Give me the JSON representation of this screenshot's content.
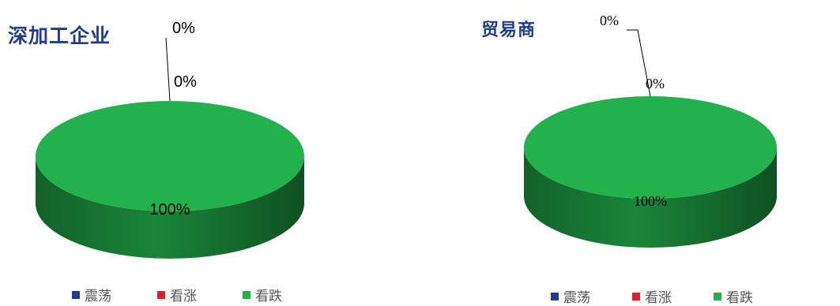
{
  "chart_data": [
    {
      "type": "pie",
      "title": "深加工企业",
      "categories": [
        "震荡",
        "看涨",
        "看跌"
      ],
      "values": [
        0,
        0,
        100
      ],
      "data_labels": [
        "0%",
        "0%",
        "100%"
      ],
      "colors": [
        "#1f3d8c",
        "#e0202a",
        "#22b14c"
      ],
      "legend": "bottom",
      "style": "3d"
    },
    {
      "type": "pie",
      "title": "贸易商",
      "categories": [
        "震荡",
        "看涨",
        "看跌"
      ],
      "values": [
        0,
        0,
        100
      ],
      "data_labels": [
        "0%",
        "0%",
        "100%"
      ],
      "colors": [
        "#1f3d8c",
        "#e0202a",
        "#22b14c"
      ],
      "legend": "bottom",
      "style": "3d"
    }
  ]
}
